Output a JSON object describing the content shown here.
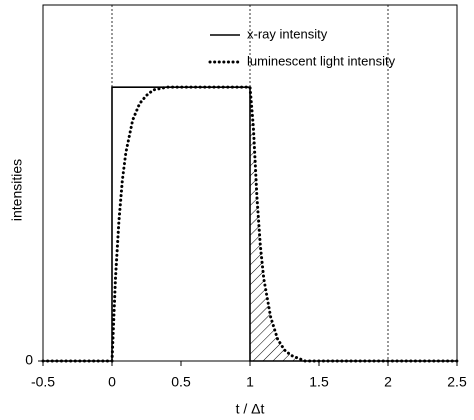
{
  "chart_data": {
    "type": "line",
    "x_label": "t / Δt",
    "y_label": "intensities",
    "xlim": [
      -0.5,
      2.5
    ],
    "xticks": [
      -0.5,
      0,
      0.5,
      1,
      1.5,
      2,
      2.5
    ],
    "ylim": [
      0,
      1.3
    ],
    "yticks": [
      0
    ],
    "x_gridlines": [
      0,
      1,
      2
    ],
    "legend": "upper right",
    "series": [
      {
        "name": "x-ray intensity",
        "color": "#000000",
        "style": "solid",
        "x": [
          -0.5,
          0,
          0,
          1,
          1,
          2.5
        ],
        "values": [
          0,
          0,
          1,
          1,
          0,
          0
        ]
      },
      {
        "name": "luminescent light intensity",
        "color": "#000000",
        "style": "dotted",
        "x": [
          -0.5,
          0,
          0.025,
          0.05,
          0.075,
          0.1,
          0.15,
          0.2,
          0.25,
          0.3,
          0.4,
          1,
          1.025,
          1.05,
          1.075,
          1.1,
          1.15,
          1.2,
          1.25,
          1.3,
          1.4,
          2.5
        ],
        "values": [
          0,
          0,
          0.3,
          0.51,
          0.66,
          0.76,
          0.88,
          0.94,
          0.97,
          0.99,
          1,
          1,
          0.85,
          0.6,
          0.42,
          0.3,
          0.16,
          0.08,
          0.04,
          0.02,
          0,
          0
        ]
      }
    ]
  }
}
